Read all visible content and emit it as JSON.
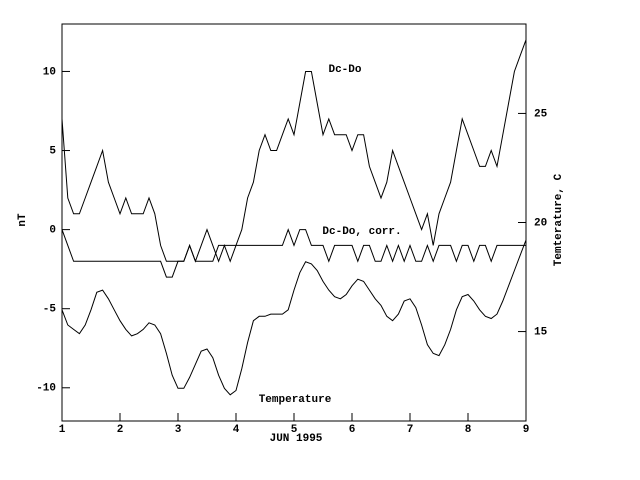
{
  "chart_data": {
    "type": "line",
    "xlabel": "JUN 1995",
    "ylabel": "nT",
    "y2label": "Temterature, C",
    "xlim": [
      1,
      9
    ],
    "xticks": [
      1,
      2,
      3,
      4,
      5,
      6,
      7,
      8,
      9
    ],
    "ylim": [
      -12.1,
      13
    ],
    "yticks": [
      -10,
      -5,
      0,
      5,
      10
    ],
    "y2lim": [
      10.9,
      29.1
    ],
    "y2ticks": [
      15,
      20,
      25
    ],
    "x": [
      1.0,
      1.1,
      1.2,
      1.3,
      1.4,
      1.5,
      1.6,
      1.7,
      1.8,
      1.9,
      2.0,
      2.1,
      2.2,
      2.3,
      2.4,
      2.5,
      2.6,
      2.7,
      2.8,
      2.9,
      3.0,
      3.1,
      3.2,
      3.3,
      3.4,
      3.5,
      3.6,
      3.7,
      3.8,
      3.9,
      4.0,
      4.1,
      4.2,
      4.3,
      4.4,
      4.5,
      4.6,
      4.7,
      4.8,
      4.9,
      5.0,
      5.1,
      5.2,
      5.3,
      5.4,
      5.5,
      5.6,
      5.7,
      5.8,
      5.9,
      6.0,
      6.1,
      6.2,
      6.3,
      6.4,
      6.5,
      6.6,
      6.7,
      6.8,
      6.9,
      7.0,
      7.1,
      7.2,
      7.3,
      7.4,
      7.5,
      7.6,
      7.7,
      7.8,
      7.9,
      8.0,
      8.1,
      8.2,
      8.3,
      8.4,
      8.5,
      8.6,
      8.7,
      8.8,
      8.9,
      9.0
    ],
    "series": [
      {
        "name": "Dc-Do",
        "color": "#000000",
        "values": [
          7,
          2,
          1,
          1,
          2,
          3,
          4,
          5,
          3,
          2,
          1,
          2,
          1,
          1,
          1,
          2,
          1,
          -1,
          -2,
          -2,
          -2,
          -2,
          -1,
          -2,
          -2,
          -2,
          -2,
          -1,
          -1,
          -1,
          -1,
          0,
          2,
          3,
          5,
          6,
          5,
          5,
          6,
          7,
          6,
          8,
          10,
          10,
          8,
          6,
          7,
          6,
          6,
          6,
          5,
          6,
          6,
          4,
          3,
          2,
          3,
          5,
          4,
          3,
          2,
          1,
          0,
          1,
          -1,
          1,
          2,
          3,
          5,
          7,
          6,
          5,
          4,
          4,
          5,
          4,
          6,
          8,
          10,
          11,
          12
        ]
      },
      {
        "name": "Dc-Do, corr.",
        "color": "#000000",
        "values": [
          0,
          -1,
          -2,
          -2,
          -2,
          -2,
          -2,
          -2,
          -2,
          -2,
          -2,
          -2,
          -2,
          -2,
          -2,
          -2,
          -2,
          -2,
          -3,
          -3,
          -2,
          -2,
          -1,
          -2,
          -1,
          0,
          -1,
          -2,
          -1,
          -2,
          -1,
          -1,
          -1,
          -1,
          -1,
          -1,
          -1,
          -1,
          -1,
          0,
          -1,
          0,
          0,
          -1,
          -1,
          -1,
          -2,
          -1,
          -1,
          -1,
          -1,
          -2,
          -1,
          -1,
          -2,
          -2,
          -1,
          -2,
          -1,
          -2,
          -1,
          -2,
          -2,
          -1,
          -2,
          -1,
          -1,
          -1,
          -2,
          -1,
          -1,
          -2,
          -1,
          -1,
          -2,
          -1,
          -1,
          -1,
          -1,
          -1,
          -1
        ]
      },
      {
        "name": "Temperature",
        "color": "#000000",
        "axis": "y2",
        "values": [
          16.0,
          15.3,
          15.1,
          14.9,
          15.3,
          16.0,
          16.8,
          16.9,
          16.5,
          16.0,
          15.5,
          15.1,
          14.8,
          14.9,
          15.1,
          15.4,
          15.3,
          14.9,
          14.0,
          13.0,
          12.4,
          12.4,
          12.9,
          13.5,
          14.1,
          14.2,
          13.8,
          13.0,
          12.4,
          12.1,
          12.3,
          13.3,
          14.5,
          15.5,
          15.7,
          15.7,
          15.8,
          15.8,
          15.8,
          16.0,
          16.9,
          17.7,
          18.2,
          18.1,
          17.8,
          17.3,
          16.9,
          16.6,
          16.5,
          16.7,
          17.1,
          17.4,
          17.3,
          16.9,
          16.5,
          16.2,
          15.7,
          15.5,
          15.8,
          16.4,
          16.5,
          16.1,
          15.3,
          14.4,
          14.0,
          13.9,
          14.4,
          15.1,
          16.0,
          16.6,
          16.7,
          16.4,
          16.0,
          15.7,
          15.6,
          15.8,
          16.4,
          17.1,
          17.8,
          18.5,
          19.2
        ]
      }
    ]
  }
}
